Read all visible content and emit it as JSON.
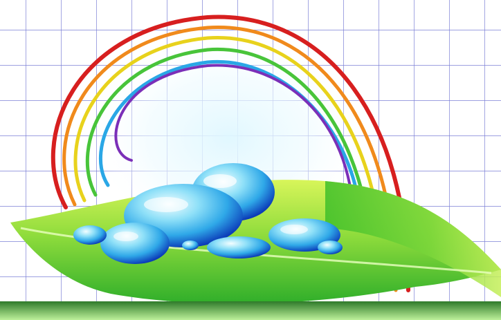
{
  "image": {
    "subject": "rainbow-water-drops-leaf",
    "colors": {
      "grid_line": "#7b7fd6",
      "background": "#ffffff",
      "rainbow_red": "#d71f1f",
      "rainbow_orange": "#f08a1c",
      "rainbow_yellow": "#e8d21c",
      "rainbow_green": "#48c43a",
      "rainbow_blue": "#2aa7e6",
      "rainbow_violet": "#7b2fb8",
      "leaf_light": "#c8f04a",
      "leaf_dark": "#2fae2a",
      "drop_light": "#e8fbff",
      "drop_mid": "#38b5ea",
      "drop_dark": "#0b3bb8",
      "ground_band": "#2e7a2a"
    },
    "icons": [
      "rainbow",
      "water-drop",
      "leaf"
    ]
  }
}
